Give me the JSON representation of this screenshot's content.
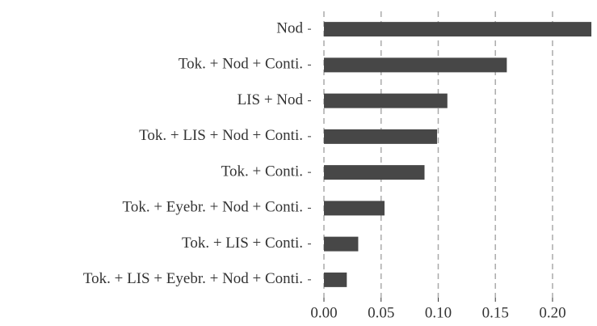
{
  "chart_data": {
    "type": "bar",
    "orientation": "horizontal",
    "categories": [
      "Nod",
      "Tok. + Nod + Conti.",
      "LIS + Nod",
      "Tok. + LIS + Nod + Conti.",
      "Tok. + Conti.",
      "Tok. + Eyebr. + Nod + Conti.",
      "Tok. + LIS + Conti.",
      "Tok. + LIS + Eyebr. + Nod + Conti."
    ],
    "values": [
      0.234,
      0.16,
      0.108,
      0.099,
      0.088,
      0.053,
      0.03,
      0.02
    ],
    "color": "#474747",
    "xlim": [
      -0.0113,
      0.2375
    ],
    "xticks": [
      {
        "value": 0,
        "label": "0.00"
      },
      {
        "value": 0.05,
        "label": "0.05"
      },
      {
        "value": 0.1,
        "label": "0.10"
      },
      {
        "value": 0.15,
        "label": "0.15"
      },
      {
        "value": 0.2,
        "label": "0.20"
      }
    ],
    "grid": true
  }
}
